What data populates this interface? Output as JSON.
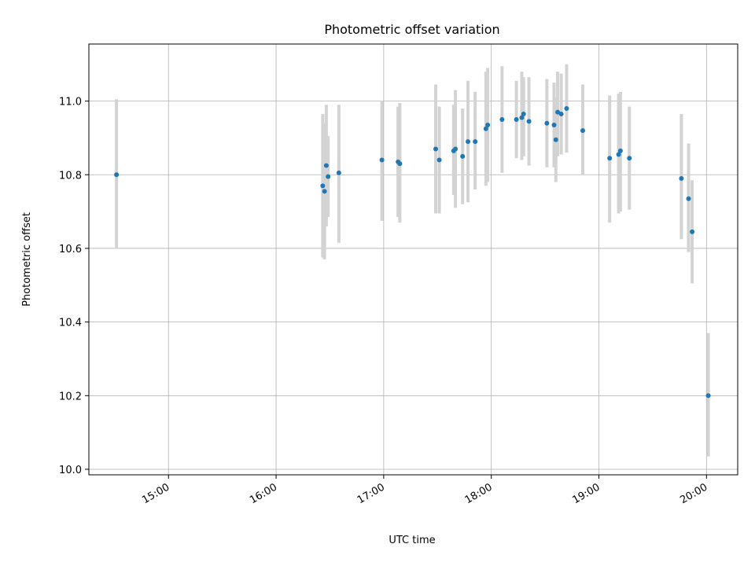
{
  "chart_data": {
    "type": "scatter",
    "title": "Photometric offset variation",
    "xlabel": "UTC time",
    "ylabel": "Photometric offset",
    "x_tick_labels": [
      "15:00",
      "16:00",
      "17:00",
      "18:00",
      "19:00",
      "20:00"
    ],
    "x_ticks_hours": [
      15,
      16,
      17,
      18,
      19,
      20
    ],
    "y_ticks": [
      10.0,
      10.2,
      10.4,
      10.6,
      10.8,
      11.0
    ],
    "y_tick_labels": [
      "10.0",
      "10.2",
      "10.4",
      "10.6",
      "10.8",
      "11.0"
    ],
    "xlim_hours": [
      14.26,
      20.29
    ],
    "ylim": [
      9.985,
      11.155
    ],
    "grid": true,
    "point_color": "#1f77b4",
    "errorbar_color": "#d3d3d3",
    "points": [
      {
        "t": "14:31",
        "y": 10.8,
        "lo": 10.6,
        "hi": 11.005
      },
      {
        "t": "16:26",
        "y": 10.77,
        "lo": 10.575,
        "hi": 10.965
      },
      {
        "t": "16:27",
        "y": 10.755,
        "lo": 10.57,
        "hi": 10.94
      },
      {
        "t": "16:28",
        "y": 10.825,
        "lo": 10.66,
        "hi": 10.99
      },
      {
        "t": "16:29",
        "y": 10.795,
        "lo": 10.685,
        "hi": 10.905
      },
      {
        "t": "16:35",
        "y": 10.805,
        "lo": 10.615,
        "hi": 10.99
      },
      {
        "t": "16:59",
        "y": 10.84,
        "lo": 10.675,
        "hi": 11.0
      },
      {
        "t": "17:08",
        "y": 10.835,
        "lo": 10.685,
        "hi": 10.985
      },
      {
        "t": "17:09",
        "y": 10.83,
        "lo": 10.67,
        "hi": 10.995
      },
      {
        "t": "17:29",
        "y": 10.87,
        "lo": 10.695,
        "hi": 11.045
      },
      {
        "t": "17:31",
        "y": 10.84,
        "lo": 10.695,
        "hi": 10.985
      },
      {
        "t": "17:39",
        "y": 10.865,
        "lo": 10.745,
        "hi": 10.99
      },
      {
        "t": "17:40",
        "y": 10.87,
        "lo": 10.71,
        "hi": 11.03
      },
      {
        "t": "17:44",
        "y": 10.85,
        "lo": 10.72,
        "hi": 10.98
      },
      {
        "t": "17:47",
        "y": 10.89,
        "lo": 10.725,
        "hi": 11.055
      },
      {
        "t": "17:51",
        "y": 10.89,
        "lo": 10.76,
        "hi": 11.025
      },
      {
        "t": "17:57",
        "y": 10.925,
        "lo": 10.77,
        "hi": 11.08
      },
      {
        "t": "17:58",
        "y": 10.935,
        "lo": 10.78,
        "hi": 11.09
      },
      {
        "t": "18:06",
        "y": 10.95,
        "lo": 10.805,
        "hi": 11.095
      },
      {
        "t": "18:14",
        "y": 10.95,
        "lo": 10.845,
        "hi": 11.055
      },
      {
        "t": "18:17",
        "y": 10.955,
        "lo": 10.84,
        "hi": 11.08
      },
      {
        "t": "18:18",
        "y": 10.965,
        "lo": 10.85,
        "hi": 11.065
      },
      {
        "t": "18:21",
        "y": 10.945,
        "lo": 10.825,
        "hi": 11.065
      },
      {
        "t": "18:31",
        "y": 10.94,
        "lo": 10.82,
        "hi": 11.06
      },
      {
        "t": "18:35",
        "y": 10.935,
        "lo": 10.82,
        "hi": 11.05
      },
      {
        "t": "18:36",
        "y": 10.895,
        "lo": 10.78,
        "hi": 11.01
      },
      {
        "t": "18:37",
        "y": 10.97,
        "lo": 10.85,
        "hi": 11.08
      },
      {
        "t": "18:39",
        "y": 10.965,
        "lo": 10.855,
        "hi": 11.075
      },
      {
        "t": "18:42",
        "y": 10.98,
        "lo": 10.86,
        "hi": 11.1
      },
      {
        "t": "18:51",
        "y": 10.92,
        "lo": 10.8,
        "hi": 11.045
      },
      {
        "t": "19:06",
        "y": 10.845,
        "lo": 10.67,
        "hi": 11.015
      },
      {
        "t": "19:11",
        "y": 10.855,
        "lo": 10.695,
        "hi": 11.02
      },
      {
        "t": "19:12",
        "y": 10.865,
        "lo": 10.7,
        "hi": 11.025
      },
      {
        "t": "19:17",
        "y": 10.845,
        "lo": 10.705,
        "hi": 10.985
      },
      {
        "t": "19:46",
        "y": 10.79,
        "lo": 10.625,
        "hi": 10.965
      },
      {
        "t": "19:50",
        "y": 10.735,
        "lo": 10.59,
        "hi": 10.885
      },
      {
        "t": "19:52",
        "y": 10.645,
        "lo": 10.505,
        "hi": 10.785
      },
      {
        "t": "20:01",
        "y": 10.2,
        "lo": 10.035,
        "hi": 10.37
      }
    ]
  }
}
